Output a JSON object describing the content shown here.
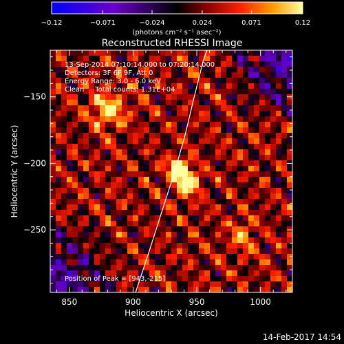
{
  "chart_data": {
    "type": "heatmap",
    "title": "Reconstructed RHESSI Image",
    "xlabel": "Heliocentric X (arcsec)",
    "ylabel": "Heliocentric Y (arcsec)",
    "xlim": [
      835,
      1025
    ],
    "ylim": [
      -297,
      -115
    ],
    "x_ticks": [
      850,
      900,
      950,
      1000
    ],
    "x_tick_labels": [
      "850",
      "900",
      "950",
      "1000"
    ],
    "y_ticks": [
      -150,
      -200,
      -250
    ],
    "y_tick_labels": [
      "−150",
      "−200",
      "−250"
    ],
    "info_lines": [
      "13-Sep-2014 07:10:14.000 to 07:20:14.000",
      "Detectors: 3F 6F 9F, Att 0",
      "Energy Range: 3.0 - 6.0 keV",
      "Clean     Total counts: 1.31E+04"
    ],
    "peak_label": "Position of Peak = [943,-215]",
    "peak": [
      943,
      -215
    ],
    "colorbar": {
      "ticks": [
        -0.12,
        -0.071,
        -0.024,
        0.024,
        0.071,
        0.12
      ],
      "tick_labels": [
        "−0.12",
        "−0.071",
        "−0.024",
        "0.024",
        "0.071",
        "0.12"
      ],
      "units_label": "(photons cm⁻² s⁻¹ asec⁻²)",
      "range": [
        -0.12,
        0.12
      ],
      "colors": [
        "#0000ff",
        "#6a00c8",
        "#000000",
        "#8a0000",
        "#ff2000",
        "#ff9a00",
        "#ffffa0"
      ]
    },
    "sources": [
      {
        "x": 936,
        "y": -204,
        "peak": 0.12,
        "sigma": 6
      },
      {
        "x": 943,
        "y": -215,
        "peak": 0.12,
        "sigma": 6
      },
      {
        "x": 880,
        "y": -160,
        "peak": 0.08,
        "sigma": 9
      },
      {
        "x": 985,
        "y": -255,
        "peak": 0.05,
        "sigma": 8
      }
    ],
    "limb": [
      [
        902,
        -297
      ],
      [
        913,
        -265
      ],
      [
        924,
        -232
      ],
      [
        933,
        -205
      ],
      [
        941,
        -178
      ],
      [
        948,
        -150
      ],
      [
        955,
        -123
      ],
      [
        958,
        -115
      ]
    ],
    "timestamp": "14-Feb-2017 14:54"
  }
}
